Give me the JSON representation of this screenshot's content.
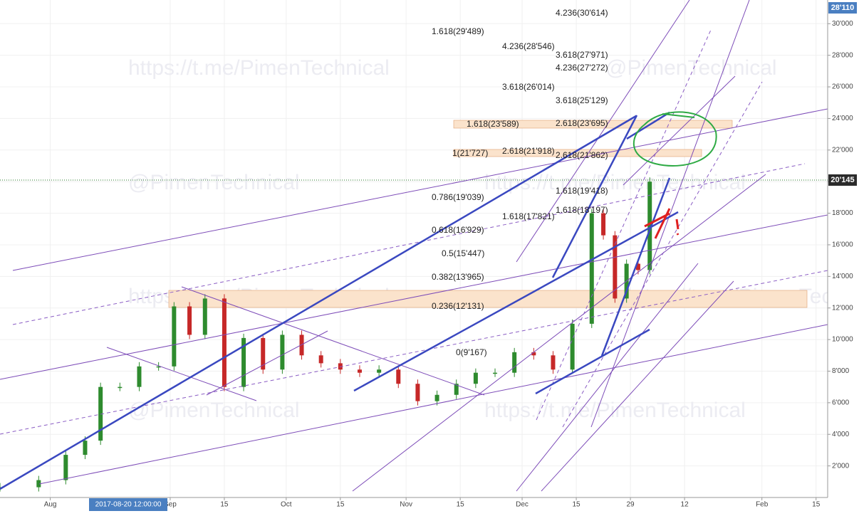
{
  "chart_data": {
    "type": "candlestick",
    "x": [
      "2017-07-19",
      "2017-07-29",
      "2017-08-05",
      "2017-08-10",
      "2017-08-14",
      "2017-08-19",
      "2017-08-24",
      "2017-08-29",
      "2017-09-02",
      "2017-09-06",
      "2017-09-10",
      "2017-09-15",
      "2017-09-20",
      "2017-09-25",
      "2017-09-30",
      "2017-10-05",
      "2017-10-10",
      "2017-10-15",
      "2017-10-20",
      "2017-10-25",
      "2017-10-30",
      "2017-11-04",
      "2017-11-09",
      "2017-11-14",
      "2017-11-19",
      "2017-11-24",
      "2017-11-29",
      "2017-12-04",
      "2017-12-09",
      "2017-12-14",
      "2017-12-19",
      "2017-12-22",
      "2017-12-25",
      "2017-12-28",
      "2017-12-31",
      "2018-01-03"
    ],
    "values": [
      650,
      1100,
      2700,
      3600,
      7000,
      7000,
      8300,
      8300,
      12100,
      10300,
      12600,
      7000,
      10100,
      8100,
      10300,
      9000,
      8500,
      8100,
      7900,
      8100,
      7200,
      6100,
      6500,
      7200,
      7900,
      7900,
      9200,
      9000,
      8100,
      11000,
      18000,
      16600,
      12600,
      14800,
      14400,
      20000
    ],
    "up_color": "#2e8b2e",
    "down_color": "#c62828",
    "xlim": [
      "2017-07-19",
      "2018-02-18"
    ],
    "xticks": [
      {
        "value": "2017-08-01",
        "label": "Aug"
      },
      {
        "value": "2017-09-01",
        "label": "Sep"
      },
      {
        "value": "2017-09-15",
        "label": "15"
      },
      {
        "value": "2017-10-01",
        "label": "Oct"
      },
      {
        "value": "2017-10-15",
        "label": "15"
      },
      {
        "value": "2017-11-01",
        "label": "Nov"
      },
      {
        "value": "2017-11-15",
        "label": "15"
      },
      {
        "value": "2017-12-01",
        "label": "Dec"
      },
      {
        "value": "2017-12-15",
        "label": "15"
      },
      {
        "value": "2017-12-29",
        "label": "29"
      },
      {
        "value": "2018-01-12",
        "label": "12"
      },
      {
        "value": "2018-02-01",
        "label": "Feb"
      },
      {
        "value": "2018-02-15",
        "label": "15"
      }
    ],
    "ylim": [
      0,
      31500
    ],
    "yticks": [
      {
        "value": 2000,
        "label": "2'000"
      },
      {
        "value": 4000,
        "label": "4'000"
      },
      {
        "value": 6000,
        "label": "6'000"
      },
      {
        "value": 8000,
        "label": "8'000"
      },
      {
        "value": 10000,
        "label": "10'000"
      },
      {
        "value": 12000,
        "label": "12'000"
      },
      {
        "value": 14000,
        "label": "14'000"
      },
      {
        "value": 16000,
        "label": "16'000"
      },
      {
        "value": 18000,
        "label": "18'000"
      },
      {
        "value": 20000,
        "label": "20'000"
      },
      {
        "value": 22000,
        "label": "22'000"
      },
      {
        "value": 24000,
        "label": "24'000"
      },
      {
        "value": 26000,
        "label": "26'000"
      },
      {
        "value": 28000,
        "label": "28'000"
      },
      {
        "value": 30000,
        "label": "30'000"
      }
    ],
    "grid": true,
    "price_tags": [
      "28'110",
      "20'145"
    ],
    "crosshair_date": "2017-08-20 12:00:00",
    "annotations": [
      "4.236(30'614)",
      "1.618(29'489)",
      "4.236(28'546)",
      "3.618(27'971)",
      "4.236(27'272)",
      "3.618(26'014)",
      "3.618(25'129)",
      "1.618(23'589)",
      "2.618(23'695)",
      "1(21'727)",
      "2.618(21'918)",
      "2.618(21'862)",
      "1.618(19'418)",
      "0.786(19'039)",
      "1.618(17'821)",
      "1.618(18'197)",
      "0.618(16'929)",
      "0.5(15'447)",
      "0.382(13'965)",
      "0.236(12'131)",
      "0(9'167)"
    ],
    "watermarks": [
      "https://t.me/PimenTechnical",
      "@PimenTechnical",
      "@PimenTechnical",
      "https://t.me/PimenTechnical",
      "https://t.me/PimenTechnical",
      "https://t.me/PimenTechnical",
      "@PimenTechnical",
      "https://t.me/PimenTechnical"
    ]
  }
}
